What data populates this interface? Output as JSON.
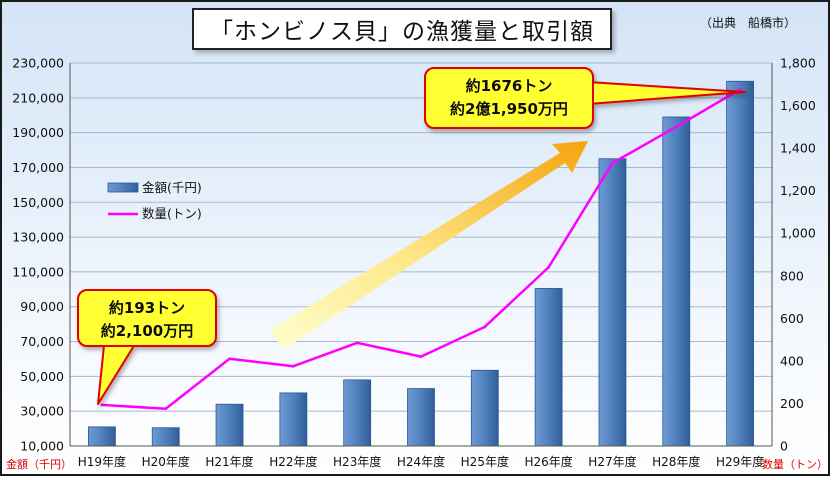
{
  "title": "「ホンビノス貝」の漁獲量と取引額",
  "source": "（出典　船橋市）",
  "colors": {
    "bar": "#4f81bd",
    "bar_dark": "#2c5a92",
    "line": "#ff00ff",
    "callout_fill": "#ffff33",
    "callout_stroke": "#e00000",
    "arrow_start": "#ffffcc",
    "arrow_end": "#f5a000"
  },
  "chart_data": {
    "type": "bar",
    "categories": [
      "H19年度",
      "H20年度",
      "H21年度",
      "H22年度",
      "H23年度",
      "H24年度",
      "H25年度",
      "H26年度",
      "H27年度",
      "H28年度",
      "H29年度"
    ],
    "series": [
      {
        "name": "金額(千円)",
        "type": "bar",
        "axis": "left",
        "values": [
          21000,
          20500,
          34000,
          40500,
          48000,
          43000,
          53500,
          100500,
          175000,
          199000,
          219500
        ]
      },
      {
        "name": "数量(トン)",
        "type": "line",
        "axis": "right",
        "values": [
          193,
          175,
          410,
          375,
          485,
          420,
          560,
          840,
          1330,
          1500,
          1676
        ]
      }
    ],
    "left_axis": {
      "label": "金額（千円）",
      "range": [
        10000,
        230000
      ],
      "ticks": [
        10000,
        30000,
        50000,
        70000,
        90000,
        110000,
        130000,
        150000,
        170000,
        190000,
        210000,
        230000
      ],
      "tick_labels": [
        "10,000",
        "30,000",
        "50,000",
        "70,000",
        "90,000",
        "110,000",
        "130,000",
        "150,000",
        "170,000",
        "190,000",
        "210,000",
        "230,000"
      ]
    },
    "right_axis": {
      "label": "数量（トン）",
      "range": [
        0,
        1800
      ],
      "ticks": [
        0,
        200,
        400,
        600,
        800,
        1000,
        1200,
        1400,
        1600,
        1800
      ],
      "tick_labels": [
        "0",
        "200",
        "400",
        "600",
        "800",
        "1,000",
        "1,200",
        "1,400",
        "1,600",
        "1,800"
      ]
    },
    "grid": "horizontal",
    "legend": "upper-left",
    "annotations": [
      {
        "target_index": 0,
        "lines": [
          "約193トン",
          "約2,100万円"
        ]
      },
      {
        "target_index": 10,
        "lines": [
          "約1676トン",
          "約2億1,950万円"
        ]
      }
    ],
    "trend_arrow": "rising"
  }
}
